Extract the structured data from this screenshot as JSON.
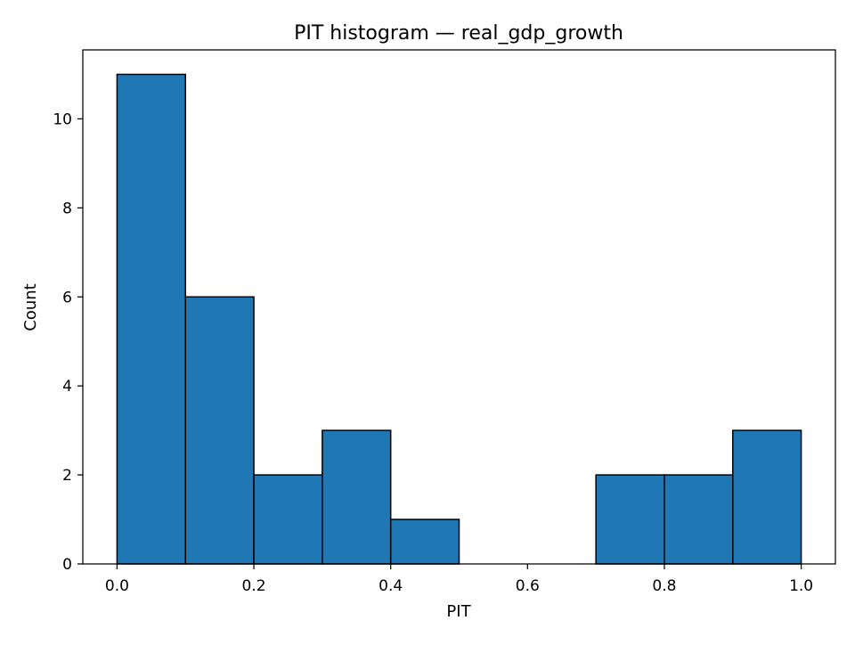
{
  "chart_data": {
    "type": "bar",
    "title": "PIT histogram — real_gdp_growth",
    "xlabel": "PIT",
    "ylabel": "Count",
    "bins": [
      {
        "x0": 0.0,
        "x1": 0.1,
        "count": 11
      },
      {
        "x0": 0.1,
        "x1": 0.2,
        "count": 6
      },
      {
        "x0": 0.2,
        "x1": 0.3,
        "count": 2
      },
      {
        "x0": 0.3,
        "x1": 0.4,
        "count": 3
      },
      {
        "x0": 0.4,
        "x1": 0.5,
        "count": 1
      },
      {
        "x0": 0.5,
        "x1": 0.6,
        "count": 0
      },
      {
        "x0": 0.6,
        "x1": 0.7,
        "count": 0
      },
      {
        "x0": 0.7,
        "x1": 0.8,
        "count": 2
      },
      {
        "x0": 0.8,
        "x1": 0.9,
        "count": 2
      },
      {
        "x0": 0.9,
        "x1": 1.0,
        "count": 3
      }
    ],
    "xlim": [
      -0.05,
      1.05
    ],
    "ylim": [
      0,
      11.55
    ],
    "x_ticks": [
      0.0,
      0.2,
      0.4,
      0.6,
      0.8,
      1.0
    ],
    "x_tick_labels": [
      "0.0",
      "0.2",
      "0.4",
      "0.6",
      "0.8",
      "1.0"
    ],
    "y_ticks": [
      0,
      2,
      4,
      6,
      8,
      10
    ],
    "y_tick_labels": [
      "0",
      "2",
      "4",
      "6",
      "8",
      "10"
    ],
    "grid": false,
    "colors": {
      "bar_fill": "#1f77b4",
      "bar_edge": "#000000",
      "axes": "#000000"
    }
  }
}
